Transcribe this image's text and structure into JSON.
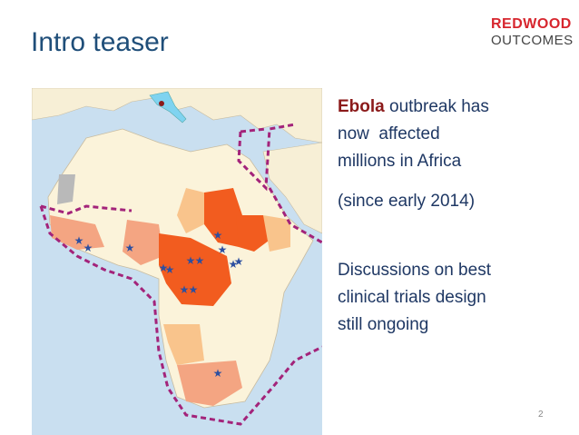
{
  "header": {
    "title": "Intro teaser",
    "logo": [
      "REDWOOD",
      "OUTCOMES"
    ]
  },
  "body": {
    "paragraphs": [
      {
        "emphasis": "Ebola",
        "lines": [
          "outbreak has",
          "now  affected",
          "millions in Africa"
        ]
      },
      {
        "lines": [
          "(since early 2014)"
        ]
      },
      {
        "lines": [
          "Discussions on best",
          "clinical trials design",
          "still ongoing"
        ]
      }
    ]
  },
  "footer": {
    "page": "2"
  }
}
